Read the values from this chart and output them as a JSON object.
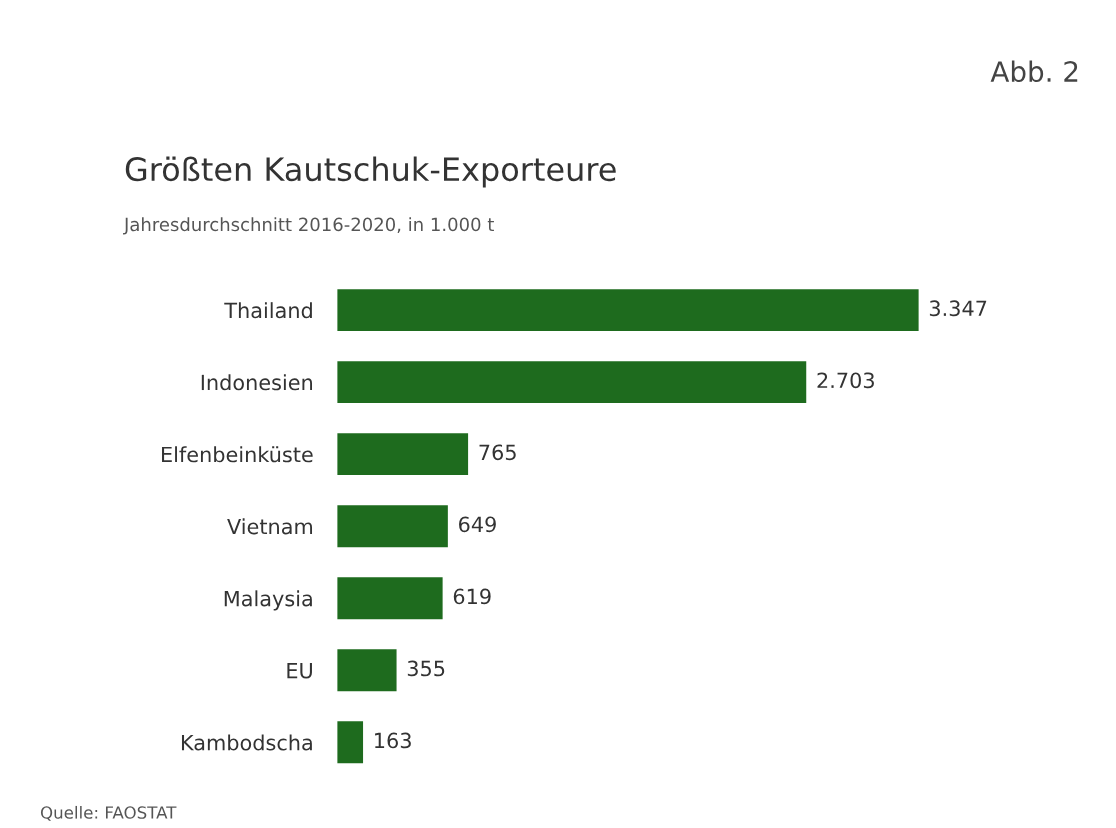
{
  "chart_data": {
    "type": "bar",
    "orientation": "horizontal",
    "title": "Größten Kautschuk-Exporteure",
    "subtitle": "Jahresdurchschnitt 2016-2020, in 1.000 t",
    "categories": [
      "Thailand",
      "Indonesien",
      "Elfenbeinküste",
      "Vietnam",
      "Malaysia",
      "EU",
      "Kambodscha"
    ],
    "values": [
      3347,
      2703,
      765,
      649,
      619,
      355,
      163
    ],
    "value_labels": [
      "3.347",
      "2.703",
      "765",
      "649",
      "619",
      "355",
      "163"
    ],
    "color": "#1e6b1e",
    "annotations": [
      "Abb. 2",
      "Quelle: FAOSTAT"
    ]
  }
}
